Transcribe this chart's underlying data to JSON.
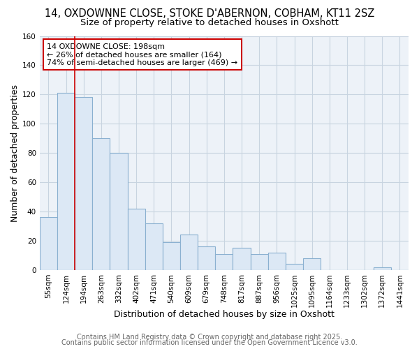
{
  "title": "14, OXDOWNNE CLOSE, STOKE D'ABERNON, COBHAM, KT11 2SZ",
  "subtitle": "Size of property relative to detached houses in Oxshott",
  "xlabel": "Distribution of detached houses by size in Oxshott",
  "ylabel": "Number of detached properties",
  "categories": [
    "55sqm",
    "124sqm",
    "194sqm",
    "263sqm",
    "332sqm",
    "402sqm",
    "471sqm",
    "540sqm",
    "609sqm",
    "679sqm",
    "748sqm",
    "817sqm",
    "887sqm",
    "956sqm",
    "1025sqm",
    "1095sqm",
    "1164sqm",
    "1233sqm",
    "1302sqm",
    "1372sqm",
    "1441sqm"
  ],
  "values": [
    36,
    121,
    118,
    90,
    80,
    42,
    32,
    19,
    24,
    16,
    11,
    15,
    11,
    12,
    4,
    8,
    0,
    0,
    0,
    2,
    0
  ],
  "bar_color": "#dce8f5",
  "bar_edge_color": "#8ab0d0",
  "redline_color": "#cc0000",
  "annotation_text": "14 OXDOWNE CLOSE: 198sqm\n← 26% of detached houses are smaller (164)\n74% of semi-detached houses are larger (469) →",
  "annotation_box_color": "#ffffff",
  "annotation_box_edge": "#cc0000",
  "footer1": "Contains HM Land Registry data © Crown copyright and database right 2025.",
  "footer2": "Contains public sector information licensed under the Open Government Licence v3.0.",
  "ylim": [
    0,
    160
  ],
  "yticks": [
    0,
    20,
    40,
    60,
    80,
    100,
    120,
    140,
    160
  ],
  "background_color": "#edf2f8",
  "grid_color": "#c8d4e0",
  "title_fontsize": 10.5,
  "subtitle_fontsize": 9.5,
  "axis_fontsize": 9,
  "tick_fontsize": 7.5,
  "footer_fontsize": 7,
  "annot_fontsize": 8
}
